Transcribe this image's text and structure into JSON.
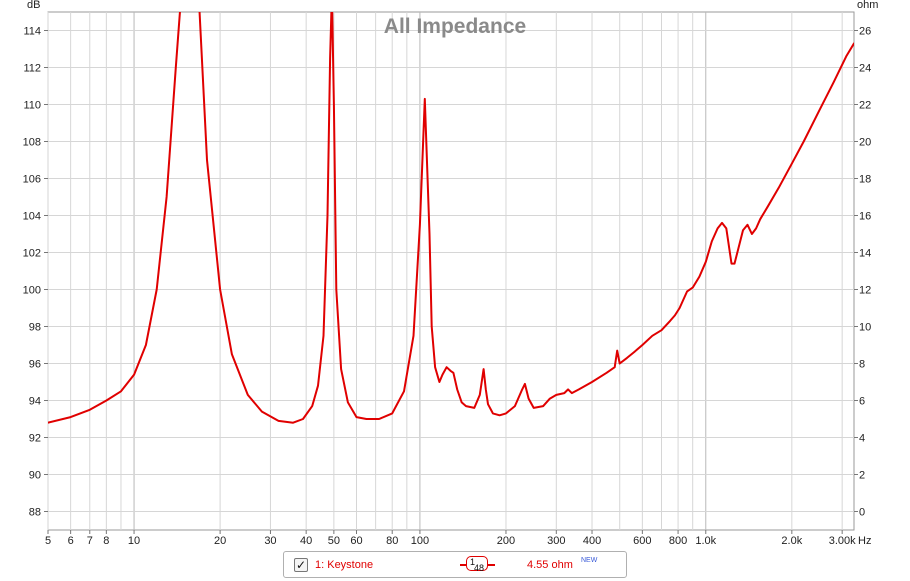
{
  "chart_data": {
    "type": "line",
    "title": "All Impedance",
    "left_axis_unit": "dB",
    "right_axis_unit": "ohm",
    "x_axis_unit": "Hz",
    "x_scale": "log",
    "xlim": [
      5,
      3300
    ],
    "ylim_left": [
      87,
      115
    ],
    "ylim_right": [
      -1,
      27
    ],
    "grid": true,
    "x_ticks": [
      {
        "value": 5,
        "label": "5"
      },
      {
        "value": 6,
        "label": "6"
      },
      {
        "value": 7,
        "label": "7"
      },
      {
        "value": 8,
        "label": "8"
      },
      {
        "value": 10,
        "label": "10"
      },
      {
        "value": 20,
        "label": "20"
      },
      {
        "value": 30,
        "label": "30"
      },
      {
        "value": 40,
        "label": "40"
      },
      {
        "value": 50,
        "label": "50"
      },
      {
        "value": 60,
        "label": "60"
      },
      {
        "value": 80,
        "label": "80"
      },
      {
        "value": 100,
        "label": "100"
      },
      {
        "value": 200,
        "label": "200"
      },
      {
        "value": 300,
        "label": "300"
      },
      {
        "value": 400,
        "label": "400"
      },
      {
        "value": 600,
        "label": "600"
      },
      {
        "value": 800,
        "label": "800"
      },
      {
        "value": 1000,
        "label": "1.0k"
      },
      {
        "value": 2000,
        "label": "2.0k"
      },
      {
        "value": 3000,
        "label": "3.00k"
      }
    ],
    "y_ticks_left": [
      "88",
      "90",
      "92",
      "94",
      "96",
      "98",
      "100",
      "102",
      "104",
      "106",
      "108",
      "110",
      "112",
      "114"
    ],
    "y_ticks_right": [
      "0",
      "2",
      "4",
      "6",
      "8",
      "10",
      "12",
      "14",
      "16",
      "18",
      "20",
      "22",
      "24",
      "26"
    ],
    "series": [
      {
        "name": "1: Keystone",
        "color": "#e00000",
        "unit": "ohm",
        "x": [
          5,
          6,
          7,
          8,
          9,
          10,
          11,
          12,
          13,
          14,
          14.8,
          16.7,
          18,
          20,
          22,
          25,
          28,
          32,
          36,
          39,
          42,
          44,
          46,
          47.5,
          48.5,
          49.2,
          50,
          51,
          53,
          56,
          60,
          65,
          72,
          80,
          88,
          95,
          100,
          104,
          108,
          110,
          113,
          117,
          120,
          124,
          128,
          131,
          135,
          140,
          145,
          155,
          162,
          167,
          170,
          173,
          180,
          190,
          200,
          215,
          228,
          233,
          240,
          250,
          270,
          285,
          300,
          320,
          330,
          340,
          360,
          400,
          450,
          480,
          490,
          500,
          530,
          560,
          600,
          650,
          700,
          750,
          780,
          810,
          860,
          900,
          950,
          1000,
          1050,
          1100,
          1140,
          1180,
          1230,
          1260,
          1300,
          1350,
          1400,
          1450,
          1500,
          1550,
          1650,
          1800,
          2000,
          2200,
          2500,
          2800,
          3100,
          3300
        ],
        "values": [
          4.8,
          5.1,
          5.5,
          6.0,
          6.5,
          7.4,
          9.0,
          12.0,
          17.0,
          24.0,
          29.0,
          29.0,
          19.0,
          12.0,
          8.5,
          6.3,
          5.4,
          4.9,
          4.8,
          5.0,
          5.7,
          6.8,
          9.5,
          16.0,
          24.5,
          28.0,
          22.0,
          12.0,
          7.7,
          5.9,
          5.1,
          5.0,
          5.0,
          5.3,
          6.5,
          9.5,
          15.5,
          22.3,
          15.0,
          10.0,
          7.8,
          7.0,
          7.4,
          7.8,
          7.6,
          7.5,
          6.6,
          5.9,
          5.7,
          5.6,
          6.3,
          7.7,
          6.6,
          5.8,
          5.3,
          5.2,
          5.3,
          5.7,
          6.6,
          6.9,
          6.1,
          5.6,
          5.7,
          6.1,
          6.3,
          6.4,
          6.6,
          6.4,
          6.6,
          7.0,
          7.5,
          7.8,
          8.7,
          8.0,
          8.3,
          8.6,
          9.0,
          9.5,
          9.8,
          10.3,
          10.6,
          11.0,
          11.9,
          12.1,
          12.7,
          13.5,
          14.6,
          15.3,
          15.6,
          15.3,
          13.4,
          13.4,
          14.2,
          15.2,
          15.5,
          15.0,
          15.3,
          15.8,
          16.5,
          17.5,
          18.8,
          20.0,
          21.7,
          23.2,
          24.6,
          25.3
        ]
      }
    ]
  },
  "legend": {
    "checkbox_mark": "✓",
    "series_label": "1: Keystone",
    "smoothing_numerator": "1",
    "smoothing_denominator": "48",
    "value_readout": "4.55 ohm",
    "badge": "NEW"
  }
}
